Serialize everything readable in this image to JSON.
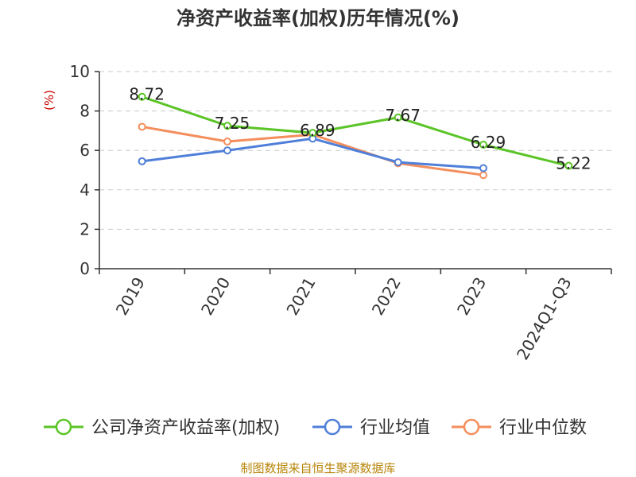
{
  "chart_data": {
    "type": "line",
    "title": "净资产收益率(加权)历年情况(%)",
    "ylabel": "(%)",
    "categories": [
      "2019",
      "2020",
      "2021",
      "2022",
      "2023",
      "2024Q1-Q3"
    ],
    "ylim": [
      0,
      10
    ],
    "yticks": [
      0,
      2,
      4,
      6,
      8,
      10
    ],
    "grid": true,
    "legend_position": "bottom",
    "series": [
      {
        "name": "公司净资产收益率(加权)",
        "color": "#5bc427",
        "values": [
          8.72,
          7.25,
          6.89,
          7.67,
          6.29,
          5.22
        ],
        "labels": [
          "8.72",
          "7.25",
          "6.89",
          "7.67",
          "6.29",
          "5.22"
        ]
      },
      {
        "name": "行业均值",
        "color": "#4f7fd9",
        "values": [
          5.45,
          6.0,
          6.6,
          5.4,
          5.1,
          null
        ]
      },
      {
        "name": "行业中位数",
        "color": "#f48e5c",
        "values": [
          7.2,
          6.45,
          6.8,
          5.35,
          4.75,
          null
        ]
      }
    ]
  },
  "footer": {
    "source": "制图数据来自恒生聚源数据库"
  }
}
